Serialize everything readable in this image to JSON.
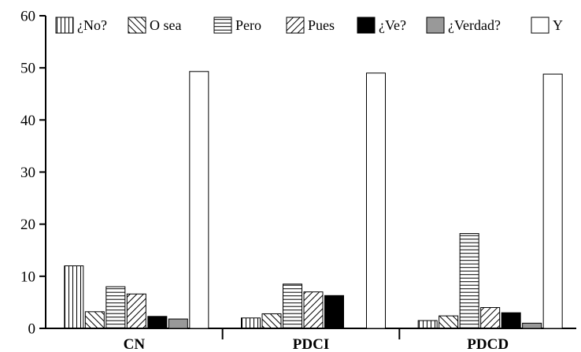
{
  "chart_data": {
    "type": "bar",
    "title": "",
    "xlabel": "",
    "ylabel": "",
    "ylim": [
      0,
      60
    ],
    "yticks": [
      0,
      10,
      20,
      30,
      40,
      50,
      60
    ],
    "grid": false,
    "legend_position": "top",
    "categories": [
      "CN",
      "PDCI",
      "PDCD"
    ],
    "series": [
      {
        "name": "¿No?",
        "pattern": "vertical-lines",
        "fill": "#ffffff",
        "values": [
          12,
          2,
          1.5
        ]
      },
      {
        "name": "O sea",
        "pattern": "diagonal-backslash",
        "fill": "#ffffff",
        "values": [
          3.2,
          2.8,
          2.4
        ]
      },
      {
        "name": "Pero",
        "pattern": "horizontal-lines",
        "fill": "#ffffff",
        "values": [
          8,
          8.5,
          18.2
        ]
      },
      {
        "name": "Pues",
        "pattern": "diagonal-slash",
        "fill": "#ffffff",
        "values": [
          6.6,
          7,
          4
        ]
      },
      {
        "name": "¿Ve?",
        "pattern": "solid",
        "fill": "#000000",
        "values": [
          2.3,
          6.3,
          3
        ]
      },
      {
        "name": "¿Verdad?",
        "pattern": "solid",
        "fill": "#999999",
        "values": [
          1.8,
          0,
          1
        ]
      },
      {
        "name": "Y",
        "pattern": "solid",
        "fill": "#ffffff",
        "values": [
          49.3,
          49,
          48.8
        ]
      }
    ]
  }
}
